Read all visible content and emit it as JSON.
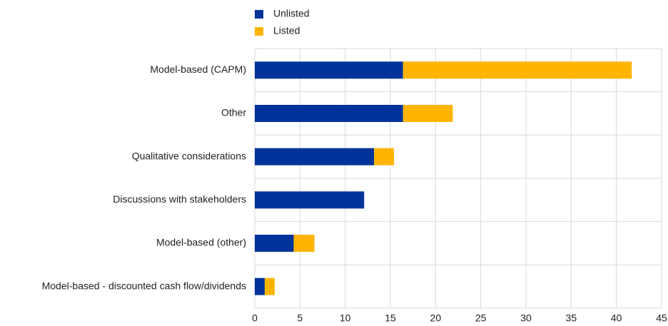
{
  "chart_data": {
    "type": "stacked-barh",
    "categories": [
      "Model-based (CAPM)",
      "Other",
      "Qualitative considerations",
      "Discussions with stakeholders",
      "Model-based (other)",
      "Model-based - discounted cash flow/dividends"
    ],
    "series": [
      {
        "name": "Unlisted",
        "color": "#003399",
        "values": [
          16.4,
          16.4,
          13.2,
          12.1,
          4.3,
          1.1
        ]
      },
      {
        "name": "Listed",
        "color": "#ffb400",
        "values": [
          25.3,
          5.5,
          2.2,
          0,
          2.3,
          1.1
        ]
      }
    ],
    "xlim": [
      0,
      45
    ],
    "xticks": [
      0,
      5,
      10,
      15,
      20,
      25,
      30,
      35,
      40,
      45
    ],
    "grid": true,
    "legend": "top"
  }
}
